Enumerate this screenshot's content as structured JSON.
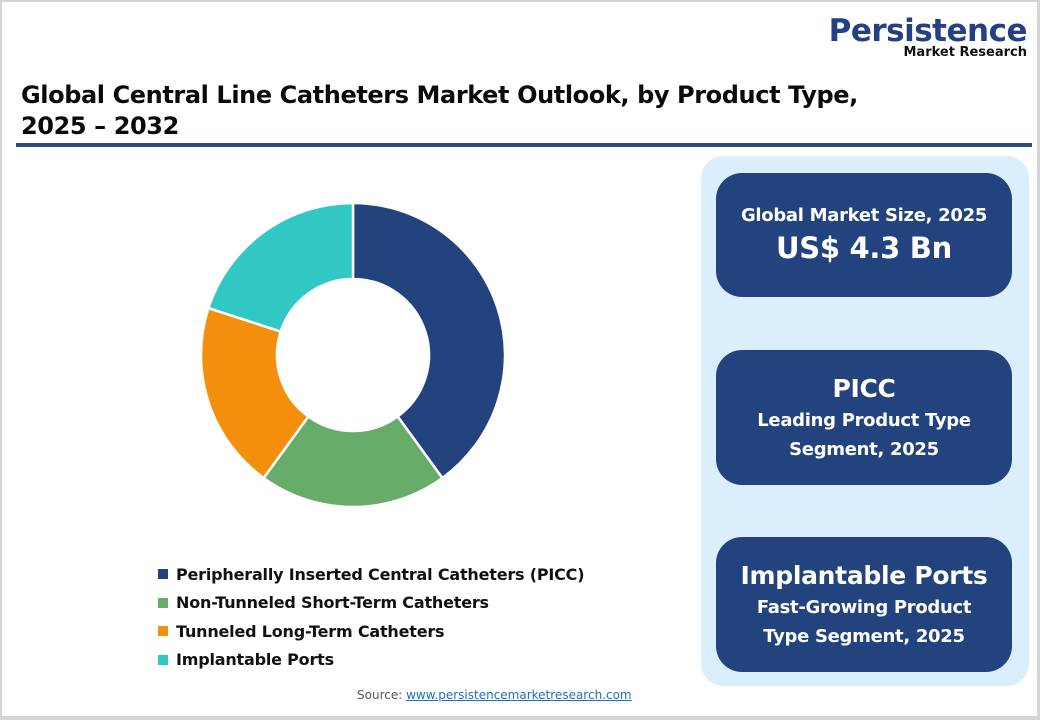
{
  "brand": {
    "name": "Persistence",
    "tagline": "Market Research",
    "color": "#243f83"
  },
  "title": {
    "line1": "Global Central Line Catheters Market Outlook, by Product Type,",
    "line2": "2025 – 2032"
  },
  "legend": [
    {
      "label": "Peripherally Inserted Central Catheters (PICC)",
      "color": "#23437f"
    },
    {
      "label": "Non-Tunneled Short-Term Catheters",
      "color": "#68ac69"
    },
    {
      "label": "Tunneled Long-Term Catheters",
      "color": "#f48f0c"
    },
    {
      "label": "Implantable Ports",
      "color": "#31c7c3"
    }
  ],
  "cards": [
    {
      "label": "Global Market Size, 2025",
      "value": "US$ 4.3 Bn"
    },
    {
      "value": "PICC",
      "sub1": "Leading Product Type",
      "sub2": "Segment, 2025"
    },
    {
      "value": "Implantable Ports",
      "sub1": "Fast-Growing Product",
      "sub2": "Type Segment, 2025"
    }
  ],
  "source": {
    "label": "Source: ",
    "link": "www.persistencemarketresearch.com"
  },
  "chart_data": {
    "type": "pie",
    "subtype": "donut",
    "title": "Global Central Line Catheters Market Outlook, by Product Type, 2025 – 2032",
    "categories": [
      "Peripherally Inserted Central Catheters (PICC)",
      "Non-Tunneled Short-Term Catheters",
      "Tunneled Long-Term Catheters",
      "Implantable Ports"
    ],
    "values": [
      40,
      20,
      20,
      20
    ],
    "unit": "% share (estimated from slice angles)",
    "colors": [
      "#23437f",
      "#68ac69",
      "#f48f0c",
      "#31c7c3"
    ],
    "start_angle_deg": 0,
    "direction": "clockwise",
    "inner_radius_ratio": 0.5,
    "legend_position": "bottom",
    "grid": false
  }
}
